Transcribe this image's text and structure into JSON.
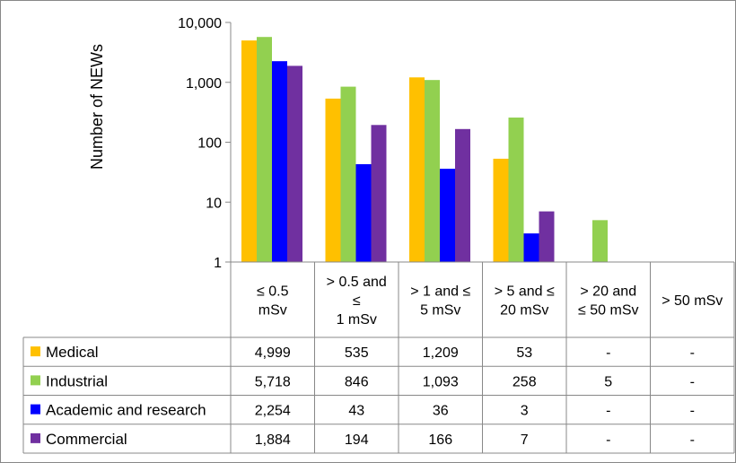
{
  "chart_data": {
    "type": "bar",
    "ylabel": "Number of NEWs",
    "yscale": "log",
    "ylim": [
      1,
      10000
    ],
    "y_ticks": [
      "1",
      "10",
      "100",
      "1,000",
      "10,000"
    ],
    "categories": [
      [
        "≤ 0.5",
        "mSv"
      ],
      [
        "> 0.5 and",
        "≤",
        "1 mSv"
      ],
      [
        "> 1 and ≤",
        "5 mSv"
      ],
      [
        "> 5 and ≤",
        "20 mSv"
      ],
      [
        "> 20 and",
        "≤ 50 mSv"
      ],
      [
        "> 50 mSv"
      ]
    ],
    "series": [
      {
        "name": "Medical",
        "color": "#FFC000",
        "values": [
          4999,
          535,
          1209,
          53,
          null,
          null
        ],
        "table": [
          "4,999",
          "535",
          "1,209",
          "53",
          "-",
          "-"
        ]
      },
      {
        "name": "Industrial",
        "color": "#92D050",
        "values": [
          5718,
          846,
          1093,
          258,
          5,
          null
        ],
        "table": [
          "5,718",
          "846",
          "1,093",
          "258",
          "5",
          "-"
        ]
      },
      {
        "name": "Academic and research",
        "color": "#0000FF",
        "values": [
          2254,
          43,
          36,
          3,
          null,
          null
        ],
        "table": [
          "2,254",
          "43",
          "36",
          "3",
          "-",
          "-"
        ]
      },
      {
        "name": "Commercial",
        "color": "#7030A0",
        "values": [
          1884,
          194,
          166,
          7,
          null,
          null
        ],
        "table": [
          "1,884",
          "194",
          "166",
          "7",
          "-",
          "-"
        ]
      }
    ],
    "grid": false,
    "legend": "data-table"
  }
}
